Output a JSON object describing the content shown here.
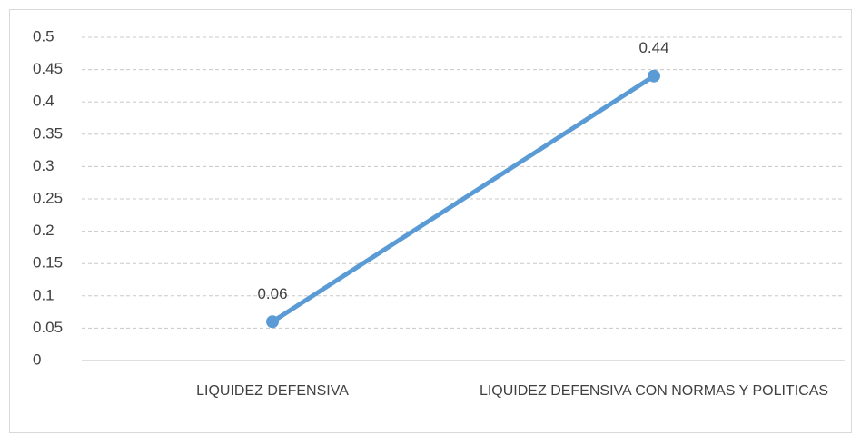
{
  "chart_data": {
    "type": "line",
    "categories": [
      "LIQUIDEZ DEFENSIVA",
      "LIQUIDEZ DEFENSIVA  CON NORMAS Y POLITICAS"
    ],
    "values": [
      0.06,
      0.44
    ],
    "color": "#5b9bd5",
    "ylim": [
      0,
      0.5
    ],
    "yticks": [
      0,
      0.05,
      0.1,
      0.15,
      0.2,
      0.25,
      0.3,
      0.35,
      0.4,
      0.45,
      0.5
    ],
    "grid": true
  }
}
